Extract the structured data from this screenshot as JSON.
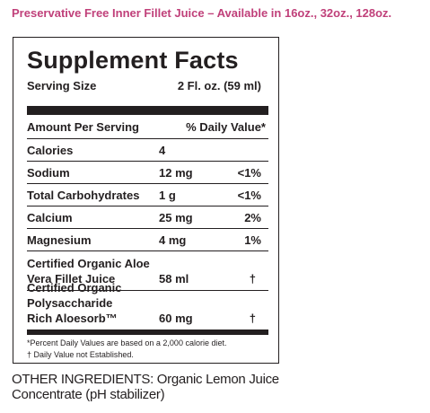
{
  "headline": "Preservative Free Inner Fillet Juice – Available in 16oz., 32oz., 128oz.",
  "facts": {
    "title": "Supplement Facts",
    "serving_label": "Serving Size",
    "serving_value": "2 Fl. oz. (59 ml)",
    "amount_header": "Amount Per Serving",
    "dv_header": "% Daily Value*",
    "rows": [
      {
        "name": "Calories",
        "amount": "4",
        "dv": ""
      },
      {
        "name": "Sodium",
        "amount": "12 mg",
        "dv": "<1%"
      },
      {
        "name": "Total Carbohydrates",
        "amount": "1 g",
        "dv": "<1%"
      },
      {
        "name": "Calcium",
        "amount": "25 mg",
        "dv": "2%"
      },
      {
        "name": "Magnesium",
        "amount": "4 mg",
        "dv": "1%"
      }
    ],
    "aloe": {
      "line1": "Certified Organic Aloe",
      "line2": "Vera Fillet Juice",
      "amount": "58 ml",
      "dv": "†"
    },
    "poly": {
      "line1": "Certified Organic Polysaccharide",
      "line2": "Rich Aloesorb™",
      "amount": "60 mg",
      "dv": "†"
    },
    "footnote1": "*Percent Daily Values are based on a 2,000 calorie diet.",
    "footnote2": "† Daily Value not Established."
  },
  "other_ingredients": "OTHER INGREDIENTS: Organic Lemon Juice Concentrate (pH stabilizer)"
}
